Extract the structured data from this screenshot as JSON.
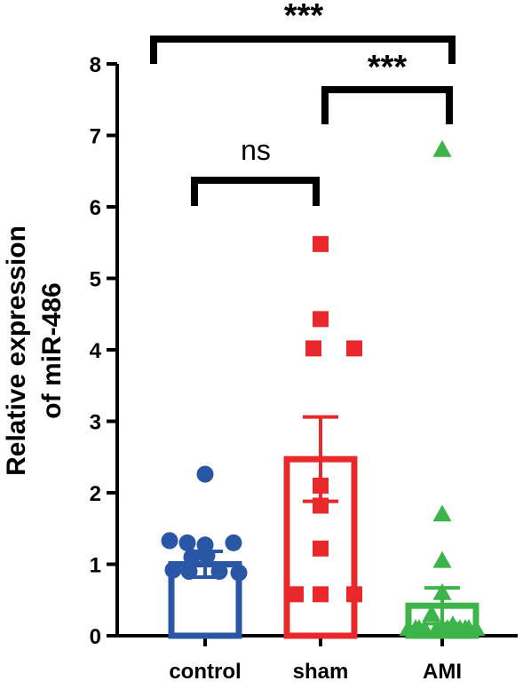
{
  "chart_data": {
    "type": "bar",
    "xlabel": "",
    "ylabel_lines": [
      "Relative expression",
      "of miR-486"
    ],
    "ylim": [
      0,
      8
    ],
    "yticks": [
      0,
      1,
      2,
      3,
      4,
      5,
      6,
      7,
      8
    ],
    "grid": false,
    "categories": [
      "control",
      "sham",
      "AMI"
    ],
    "colors": [
      "#2a56a6",
      "#e8282a",
      "#3cb44a"
    ],
    "markers": [
      "circle",
      "square",
      "triangle"
    ],
    "means": [
      1.0,
      2.47,
      0.42
    ],
    "sem": [
      0.18,
      0.59,
      0.25
    ],
    "points": [
      [
        2.26,
        1.33,
        1.27,
        1.3,
        1.3,
        1.12,
        1.1,
        0.92,
        0.88,
        0.9,
        0.9
      ],
      [
        5.48,
        4.43,
        4.02,
        4.02,
        2.1,
        1.82,
        1.22,
        0.58,
        0.58,
        0.58
      ],
      [
        6.8,
        1.7,
        1.05,
        0.6,
        0.3,
        0.15,
        0.08,
        0.05,
        0.04,
        0.03,
        0.02,
        0.02,
        0.01,
        0.01,
        0.0,
        0.0,
        0.0,
        0.0
      ]
    ],
    "comparisons": [
      {
        "from": "control",
        "to": "sham",
        "label": "ns"
      },
      {
        "from": "sham",
        "to": "AMI",
        "label": "***"
      },
      {
        "from": "control",
        "to": "AMI",
        "label": "***"
      }
    ]
  }
}
